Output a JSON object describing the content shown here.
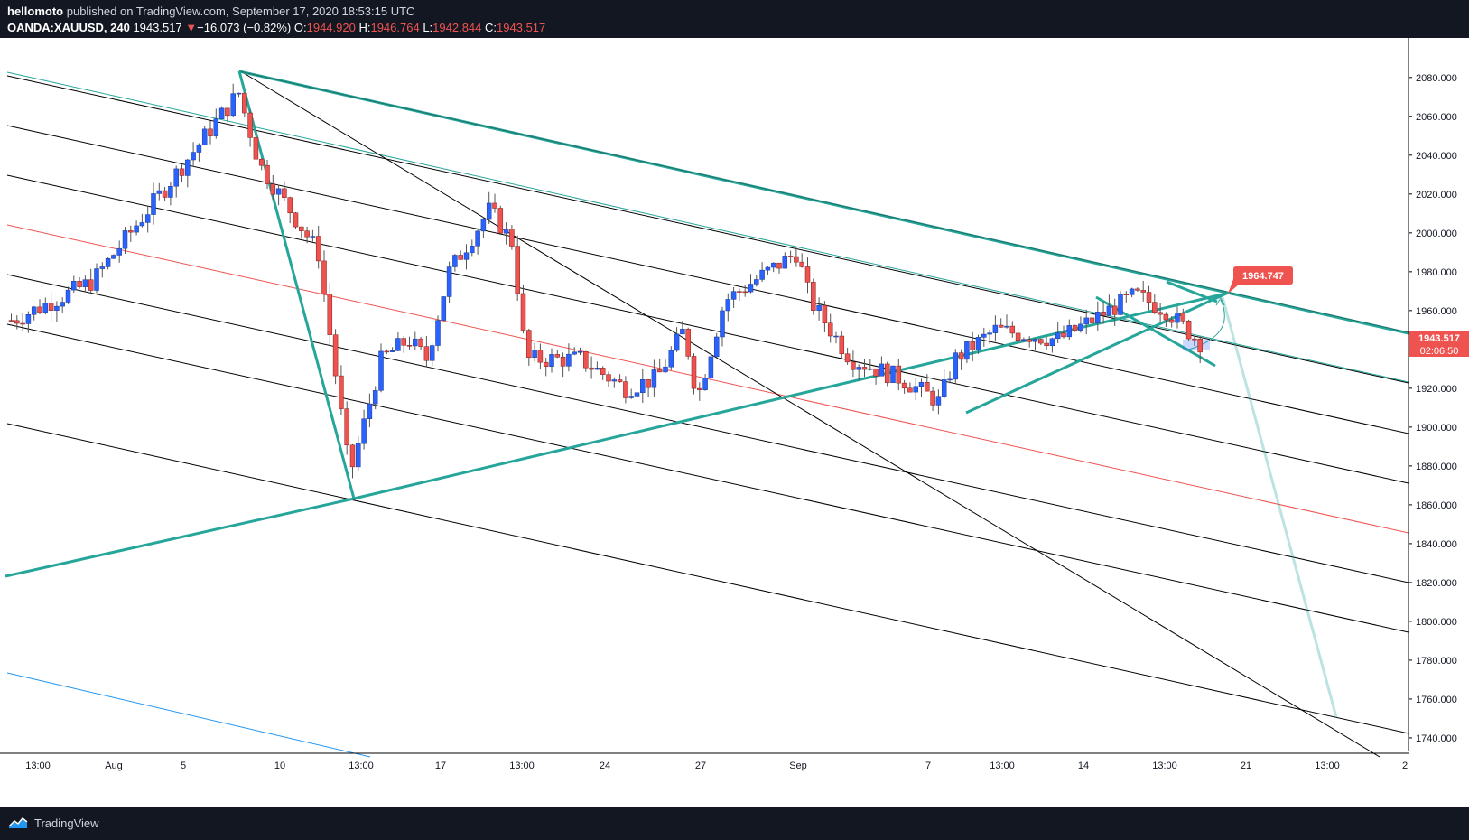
{
  "header": {
    "author": "hellomoto",
    "published_text": "published on TradingView.com, September 17, 2020 18:53:15 UTC",
    "symbol": "OANDA:XAUUSD, 240",
    "last": "1943.517",
    "change_arrow": "▼",
    "change": "−16.073 (−0.82%)",
    "o_label": "O:",
    "o": "1944.920",
    "h_label": "H:",
    "h": "1946.764",
    "l_label": "L:",
    "l": "1942.844",
    "c_label": "C:",
    "c": "1943.517"
  },
  "footer": {
    "brand": "TradingView",
    "logo_icon": "tradingview-logo-icon"
  },
  "colors": {
    "background": "#131722",
    "up": "#2962ff",
    "down": "#ef5350",
    "teal": "#26a69a",
    "channel": "#000000",
    "median": "#ef5350"
  },
  "chart_data": {
    "type": "candlestick",
    "symbol": "OANDA:XAUUSD",
    "timeframe": "240",
    "ylim": [
      1733,
      2092
    ],
    "y_ticks": [
      2080,
      2060,
      2040,
      2020,
      2000,
      1980,
      1960,
      1940,
      1920,
      1900,
      1880,
      1860,
      1840,
      1820,
      1800,
      1780,
      1760,
      1740
    ],
    "y_tick_labels": [
      "2080.000",
      "2060.000",
      "2040.000",
      "2020.000",
      "2000.000",
      "1980.000",
      "1960.000",
      "1940.000",
      "1920.000",
      "1900.000",
      "1880.000",
      "1860.000",
      "1840.000",
      "1820.000",
      "1800.000",
      "1780.000",
      "1760.000",
      "1740.000"
    ],
    "x_tick_labels": [
      "13:00",
      "Aug",
      "5",
      "10",
      "13:00",
      "17",
      "13:00",
      "24",
      "27",
      "Sep",
      "7",
      "13:00",
      "14",
      "13:00",
      "21",
      "13:00",
      "2"
    ],
    "price_labels": {
      "last_price": "1943.517",
      "countdown": "02:06:50",
      "target": "1964.747"
    },
    "anchors": [
      {
        "date": "Jul 30",
        "price": 1955
      },
      {
        "date": "Aug 1",
        "price": 1975
      },
      {
        "date": "Aug 6",
        "price": 2068
      },
      {
        "date": "Aug 7",
        "price": 2072
      },
      {
        "date": "Aug 8",
        "price": 2035
      },
      {
        "date": "Aug 11",
        "price": 1990
      },
      {
        "date": "Aug 12",
        "price": 1875
      },
      {
        "date": "Aug 13",
        "price": 1935
      },
      {
        "date": "Aug 14",
        "price": 1945
      },
      {
        "date": "Aug 15",
        "price": 1935
      },
      {
        "date": "Aug 17",
        "price": 1980
      },
      {
        "date": "Aug 18",
        "price": 2012
      },
      {
        "date": "Aug 19",
        "price": 1995
      },
      {
        "date": "Aug 20",
        "price": 1935
      },
      {
        "date": "Aug 23",
        "price": 1935
      },
      {
        "date": "Aug 25",
        "price": 1920
      },
      {
        "date": "Aug 26",
        "price": 1925
      },
      {
        "date": "Aug 27",
        "price": 1950
      },
      {
        "date": "Aug 28",
        "price": 1915
      },
      {
        "date": "Aug 30",
        "price": 1965
      },
      {
        "date": "Sep 1",
        "price": 1990
      },
      {
        "date": "Sep 2",
        "price": 1965
      },
      {
        "date": "Sep 4",
        "price": 1935
      },
      {
        "date": "Sep 7",
        "price": 1925
      },
      {
        "date": "Sep 8",
        "price": 1913
      },
      {
        "date": "Sep 9",
        "price": 1935
      },
      {
        "date": "Sep 11",
        "price": 1950
      },
      {
        "date": "Sep 13",
        "price": 1945
      },
      {
        "date": "Sep 15",
        "price": 1960
      },
      {
        "date": "Sep 16",
        "price": 1968
      },
      {
        "date": "Sep 16 13:00",
        "price": 1960
      },
      {
        "date": "Sep 17",
        "price": 1943
      }
    ]
  }
}
